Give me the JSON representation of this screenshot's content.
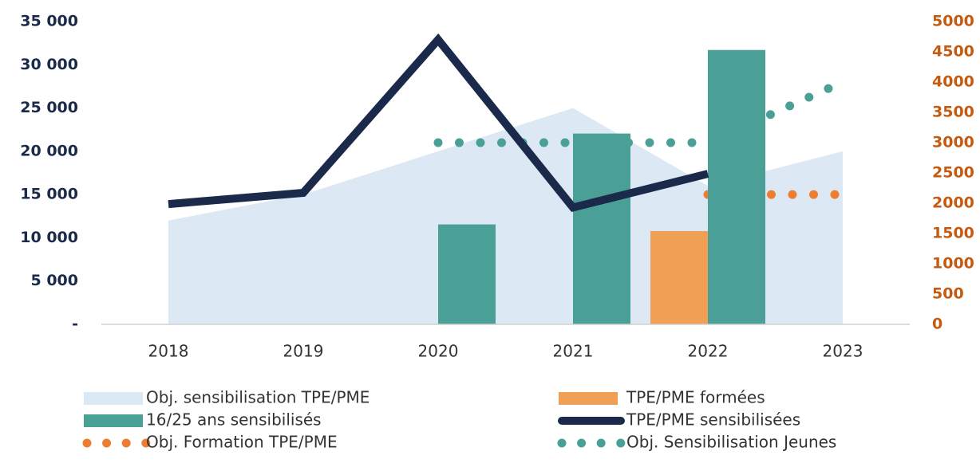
{
  "chart_data": {
    "type": "combo",
    "categories": [
      "2018",
      "2019",
      "2020",
      "2021",
      "2022",
      "2023"
    ],
    "ylim": [
      0,
      35000
    ],
    "yticks": [
      {
        "value": 0,
        "label": "-"
      },
      {
        "value": 5000,
        "label": "5 000"
      },
      {
        "value": 10000,
        "label": "10 000"
      },
      {
        "value": 15000,
        "label": "15 000"
      },
      {
        "value": 20000,
        "label": "20 000"
      },
      {
        "value": 25000,
        "label": "25 000"
      },
      {
        "value": 30000,
        "label": "30 000"
      },
      {
        "value": 35000,
        "label": "35 000"
      }
    ],
    "y2lim": [
      0,
      5000
    ],
    "y2ticks": [
      0,
      500,
      1000,
      1500,
      2000,
      2500,
      3000,
      3500,
      4000,
      4500,
      5000
    ],
    "series": [
      {
        "name": "Obj. sensibilisation TPE/PME",
        "type": "area",
        "axis": "y",
        "color": "#dde8f5",
        "values": [
          12000,
          15000,
          20000,
          25000,
          16000,
          20000
        ]
      },
      {
        "name": "TPE/PME formées",
        "type": "bar",
        "axis": "y2",
        "color": "#f0a054",
        "values": [
          null,
          null,
          null,
          null,
          1540,
          null
        ]
      },
      {
        "name": "16/25 ans sensibilisés",
        "type": "bar",
        "axis": "y2",
        "color": "#4aa096",
        "values": [
          null,
          null,
          1650,
          3150,
          4530,
          null
        ]
      },
      {
        "name": "TPE/PME sensibilisées",
        "type": "line",
        "axis": "y",
        "color": "#1b2a4a",
        "values": [
          13900,
          15200,
          32900,
          13500,
          17400,
          null
        ]
      },
      {
        "name": "Obj. Formation TPE/PME",
        "type": "dotted",
        "axis": "y",
        "color": "#ed7d31",
        "values": [
          null,
          null,
          null,
          null,
          15000,
          15000
        ]
      },
      {
        "name": "Obj. Sensibilisation Jeunes",
        "type": "dotted",
        "axis": "y2",
        "color": "#4aa096",
        "values": [
          null,
          null,
          3000,
          3000,
          3000,
          4000
        ]
      }
    ]
  }
}
